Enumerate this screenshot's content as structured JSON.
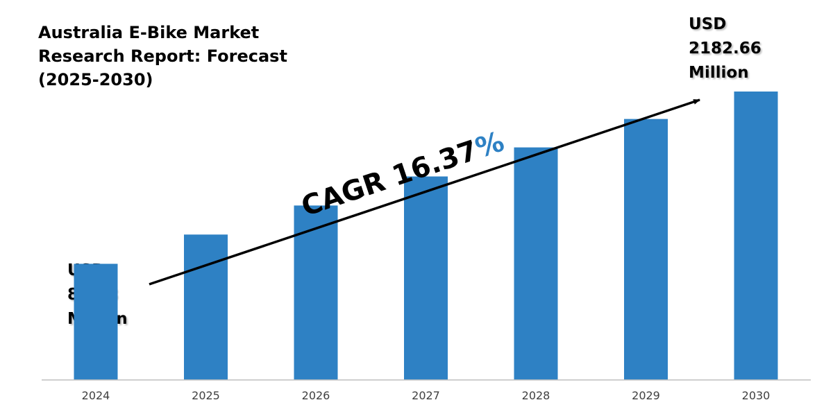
{
  "title_lines": [
    "Australia E-Bike Market",
    "Research Report: Forecast",
    "(2025-2030)"
  ],
  "start_callout": [
    "USD",
    "878.8",
    "Million"
  ],
  "end_callout": [
    "USD",
    "2182.66",
    "Million"
  ],
  "cagr": {
    "prefix": "CAGR 16.37",
    "suffix": "%"
  },
  "colors": {
    "bar": "#2e81c4",
    "percent_sign": "#2e81c4",
    "arrow": "#000000",
    "axis": "#bfbfbf",
    "tick_text": "#404040"
  },
  "chart_data": {
    "type": "bar",
    "title": "Australia E-Bike Market Research Report: Forecast (2025-2030)",
    "categories": [
      "2024",
      "2025",
      "2026",
      "2027",
      "2028",
      "2029",
      "2030"
    ],
    "values": [
      878.8,
      1100,
      1320,
      1540,
      1760,
      1975,
      2182.66
    ],
    "ylim": [
      0,
      2182.66
    ],
    "grid": false,
    "annotations": [
      "USD 878.8 Million",
      "USD 2182.66 Million",
      "CAGR 16.37%"
    ]
  }
}
